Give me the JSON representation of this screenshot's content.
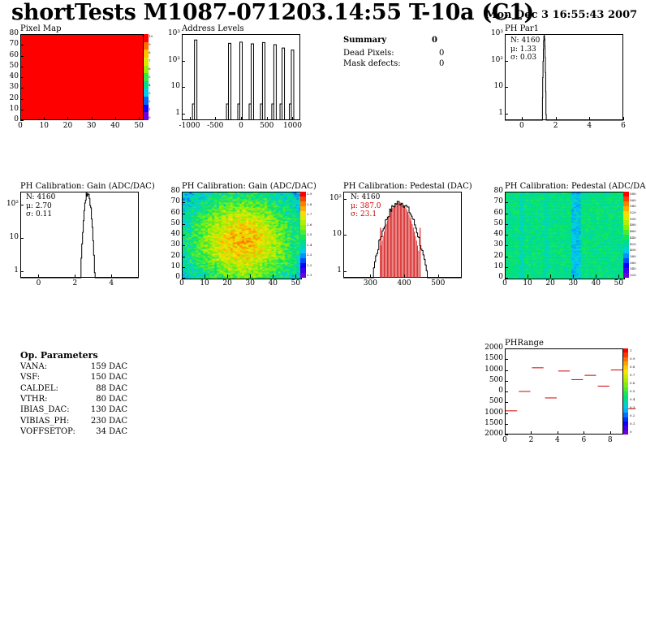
{
  "header": {
    "title": "shortTests M1087-071203.14:55 T-10a (C1)",
    "date": "Mon Dec  3 16:55:43 2007"
  },
  "colors": {
    "hist_line": "#000000",
    "pedestal_fill": "#d00000",
    "phrange_line": "#d00000",
    "pixelmap_fill": "#ff0000"
  },
  "pixel_map": {
    "title": "Pixel Map",
    "x_ticks": [
      "0",
      "10",
      "20",
      "30",
      "40",
      "50"
    ],
    "y_ticks": [
      "0",
      "10",
      "20",
      "30",
      "40",
      "50",
      "60",
      "70",
      "80"
    ],
    "z_ticks": [
      "10",
      "9",
      "8",
      "7",
      "6",
      "5",
      "4",
      "3",
      "2",
      "1",
      "0"
    ]
  },
  "address_levels": {
    "title": "Address Levels",
    "x_ticks": [
      "-1000",
      "-500",
      "0",
      "500",
      "1000"
    ],
    "y_ticks": [
      "1",
      "10",
      "10²",
      "10³"
    ]
  },
  "summary": {
    "title": "Summary",
    "value": "0",
    "rows": [
      {
        "label": "Dead Pixels:",
        "value": "0"
      },
      {
        "label": "Mask defects:",
        "value": "0"
      }
    ]
  },
  "ph_par1": {
    "title": "PH Par1",
    "stats": {
      "n": "N: 4160",
      "mu": "μ: 1.33",
      "sigma": "σ: 0.03"
    },
    "x_ticks": [
      "0",
      "2",
      "4",
      "6"
    ],
    "y_ticks": [
      "1",
      "10",
      "10²",
      "10³"
    ]
  },
  "gain_hist": {
    "title": "PH Calibration: Gain (ADC/DAC)",
    "stats": {
      "n": "N: 4160",
      "mu": "μ: 2.70",
      "sigma": "σ: 0.11"
    },
    "x_ticks": [
      "0",
      "2",
      "4"
    ],
    "y_ticks": [
      "1",
      "10",
      "10²"
    ]
  },
  "gain_map": {
    "title": "PH Calibration: Gain (ADC/DAC)",
    "x_ticks": [
      "0",
      "10",
      "20",
      "30",
      "40",
      "50"
    ],
    "y_ticks": [
      "0",
      "10",
      "20",
      "30",
      "40",
      "50",
      "60",
      "70",
      "80"
    ],
    "z_ticks": [
      "2.9",
      "2.8",
      "2.7",
      "2.6",
      "2.5",
      "2.4",
      "2.3",
      "2.2",
      "2.1"
    ]
  },
  "pedestal_hist": {
    "title": "PH Calibration: Pedestal (DAC)",
    "stats": {
      "n": "N: 4160",
      "mu": "μ: 387.0",
      "sigma": "σ: 23.1"
    },
    "x_ticks": [
      "300",
      "400",
      "500"
    ],
    "y_ticks": [
      "1",
      "10",
      "10²"
    ]
  },
  "pedestal_map": {
    "title": "PH Calibration: Pedestal (ADC/DAC",
    "x_ticks": [
      "0",
      "10",
      "20",
      "30",
      "40",
      "50"
    ],
    "y_ticks": [
      "0",
      "10",
      "20",
      "30",
      "40",
      "50",
      "60",
      "70",
      "80"
    ],
    "z_ticks": [
      "580",
      "560",
      "540",
      "520",
      "500",
      "480",
      "460",
      "440",
      "420",
      "400",
      "380",
      "360",
      "340",
      "320"
    ]
  },
  "op_params": {
    "title": "Op. Parameters",
    "rows": [
      {
        "label": "VANA:",
        "value": "159 DAC"
      },
      {
        "label": "VSF:",
        "value": "150 DAC"
      },
      {
        "label": "CALDEL:",
        "value": "88 DAC"
      },
      {
        "label": "VTHR:",
        "value": "80 DAC"
      },
      {
        "label": "IBIAS_DAC:",
        "value": "130 DAC"
      },
      {
        "label": "VIBIAS_PH:",
        "value": "230 DAC"
      },
      {
        "label": "VOFFSETOP:",
        "value": "34 DAC"
      }
    ]
  },
  "phrange": {
    "title": "PHRange",
    "x_ticks": [
      "0",
      "2",
      "4",
      "6",
      "8"
    ],
    "y_ticks": [
      "-2000",
      "-1500",
      "-1000",
      "-500",
      "0",
      "500",
      "1000",
      "1500",
      "2000"
    ],
    "y_tick_labels": [
      "2000",
      "1500",
      "1000",
      "500",
      "0",
      "500",
      "1000",
      "1500",
      "2000"
    ],
    "z_ticks": [
      "1",
      "0.9",
      "0.8",
      "0.7",
      "0.6",
      "0.5",
      "0.4",
      "0.3",
      "0.2",
      "0.1",
      "0"
    ]
  },
  "chart_data": [
    {
      "type": "heatmap",
      "title": "Pixel Map",
      "xlim": [
        0,
        52
      ],
      "ylim": [
        0,
        80
      ],
      "zlim": [
        0,
        10
      ],
      "uniform_value": 10
    },
    {
      "type": "bar",
      "title": "Address Levels",
      "xlim": [
        -1150,
        1150
      ],
      "log_y": true,
      "x": [
        -880,
        -220,
        0,
        220,
        440,
        660,
        820,
        1000
      ],
      "values": [
        600,
        450,
        500,
        430,
        480,
        400,
        300,
        250
      ]
    },
    {
      "type": "bar",
      "title": "PH Par1",
      "xlim": [
        -1,
        6
      ],
      "log_y": true,
      "mean": 1.33,
      "rms": 0.03,
      "peak": 900
    },
    {
      "type": "bar",
      "title": "PH Calibration: Gain (ADC/DAC)",
      "xlim": [
        -1,
        5.5
      ],
      "log_y": true,
      "mean": 2.7,
      "rms": 0.11,
      "peak": 450
    },
    {
      "type": "heatmap",
      "title": "PH Calibration: Gain (ADC/DAC)",
      "xlim": [
        0,
        52
      ],
      "ylim": [
        0,
        80
      ],
      "zlim": [
        2.1,
        2.9
      ]
    },
    {
      "type": "bar",
      "title": "PH Calibration: Pedestal (DAC)",
      "xlim": [
        220,
        570
      ],
      "log_y": true,
      "mean": 387.0,
      "rms": 23.1,
      "peak": 80,
      "cuts": [
        330,
        447
      ]
    },
    {
      "type": "heatmap",
      "title": "PH Calibration: Pedestal (ADC/DAC",
      "xlim": [
        0,
        52
      ],
      "ylim": [
        0,
        80
      ],
      "zlim": [
        320,
        580
      ]
    },
    {
      "type": "line",
      "title": "PHRange",
      "xlim": [
        0,
        9
      ],
      "ylim": [
        -2000,
        2000
      ],
      "x": [
        0,
        1,
        2,
        3,
        4,
        5,
        6,
        7,
        8,
        9
      ],
      "values": [
        -900,
        0,
        1100,
        -300,
        950,
        550,
        750,
        250,
        1000,
        -800
      ]
    }
  ]
}
